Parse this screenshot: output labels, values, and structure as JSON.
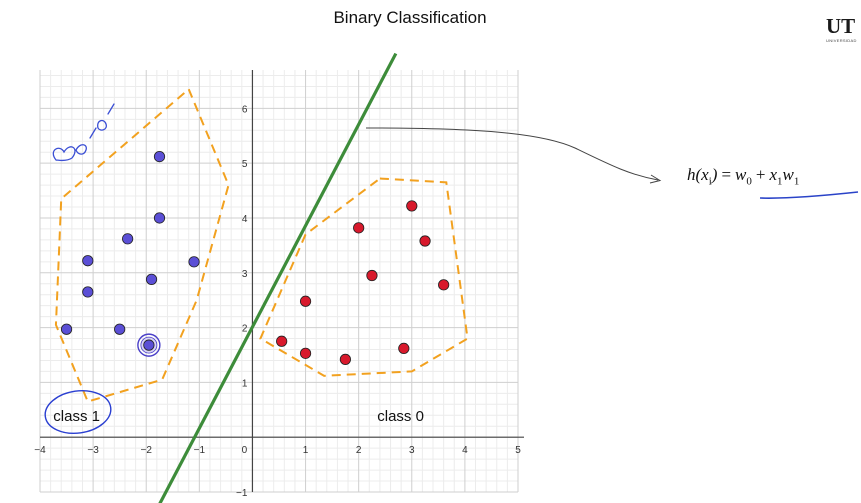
{
  "title": "Binary Classification",
  "logo": {
    "text": "UT",
    "subtext": "UNIVERSIDAD"
  },
  "formula": {
    "lhs": "h(x",
    "lhs_sub": "i",
    "lhs_close": ")",
    "eq": "=",
    "w0": "w",
    "w0_sub": "0",
    "plus": "+",
    "x1": "x",
    "x1_sub": "1",
    "w1": "w",
    "w1_sub": "1"
  },
  "handwriting": {
    "class1_note": "class 1"
  },
  "chart_data": {
    "type": "scatter",
    "xlim": [
      -4,
      5
    ],
    "ylim": [
      -1,
      6.7
    ],
    "x_ticks": [
      -4,
      -3,
      -2,
      -1,
      0,
      1,
      2,
      3,
      4,
      5
    ],
    "y_ticks": [
      -1,
      1,
      2,
      3,
      4,
      5,
      6
    ],
    "grid": true,
    "series": [
      {
        "name": "class 1",
        "color": "#5b4fd6",
        "points": [
          [
            -1.75,
            5.12
          ],
          [
            -1.75,
            4.0
          ],
          [
            -2.35,
            3.62
          ],
          [
            -3.1,
            3.22
          ],
          [
            -1.1,
            3.2
          ],
          [
            -1.9,
            2.88
          ],
          [
            -3.1,
            2.65
          ],
          [
            -3.5,
            1.97
          ],
          [
            -2.5,
            1.97
          ],
          [
            -1.95,
            1.68
          ]
        ]
      },
      {
        "name": "class 0",
        "color": "#d8192c",
        "points": [
          [
            3.0,
            4.22
          ],
          [
            2.0,
            3.82
          ],
          [
            3.25,
            3.58
          ],
          [
            2.25,
            2.95
          ],
          [
            3.6,
            2.78
          ],
          [
            1.0,
            2.48
          ],
          [
            0.55,
            1.75
          ],
          [
            1.0,
            1.53
          ],
          [
            1.75,
            1.42
          ],
          [
            2.85,
            1.62
          ]
        ]
      }
    ],
    "highlighted_point": [
      -1.95,
      1.68
    ],
    "decision_boundary": {
      "color": "#3d8c3a",
      "p1": [
        -1.9,
        -1.5
      ],
      "p2": [
        2.7,
        7.0
      ]
    },
    "hulls": [
      {
        "color": "#f2a11f",
        "points": [
          [
            -1.2,
            6.35
          ],
          [
            -0.45,
            4.6
          ],
          [
            -1.05,
            2.5
          ],
          [
            -1.7,
            1.05
          ],
          [
            -3.1,
            0.65
          ],
          [
            -3.7,
            2.05
          ],
          [
            -3.6,
            4.35
          ]
        ]
      },
      {
        "color": "#f2a11f",
        "points": [
          [
            2.4,
            4.72
          ],
          [
            3.65,
            4.65
          ],
          [
            4.05,
            1.8
          ],
          [
            3.0,
            1.2
          ],
          [
            1.35,
            1.12
          ],
          [
            0.15,
            1.8
          ],
          [
            1.0,
            3.7
          ]
        ]
      }
    ],
    "annotations": [
      {
        "text": "class 1",
        "x": -3.75,
        "y": 0.3
      },
      {
        "text": "class 0",
        "x": 2.35,
        "y": 0.3
      }
    ]
  }
}
